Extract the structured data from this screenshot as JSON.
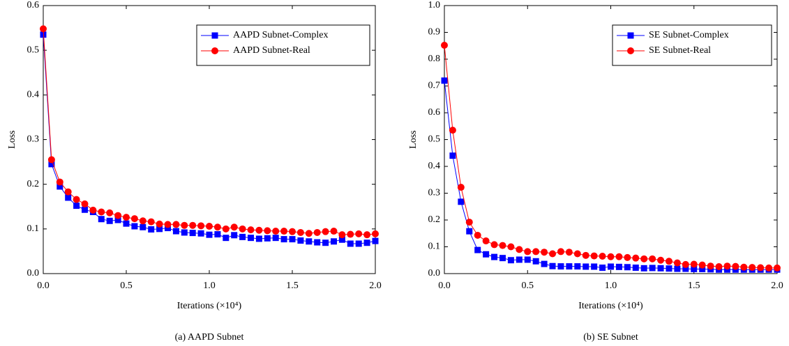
{
  "chart_data": [
    {
      "type": "line",
      "caption": "(a)  AAPD Subnet",
      "x_label": "Iterations (×10⁴)",
      "y_label": "Loss",
      "x": [
        0,
        0.05,
        0.1,
        0.15,
        0.2,
        0.25,
        0.3,
        0.35,
        0.4,
        0.45,
        0.5,
        0.55,
        0.6,
        0.65,
        0.7,
        0.75,
        0.8,
        0.85,
        0.9,
        0.95,
        1.0,
        1.05,
        1.1,
        1.15,
        1.2,
        1.25,
        1.3,
        1.35,
        1.4,
        1.45,
        1.5,
        1.55,
        1.6,
        1.65,
        1.7,
        1.75,
        1.8,
        1.85,
        1.9,
        1.95,
        2.0
      ],
      "xlim": [
        0,
        2.0
      ],
      "xticks": [
        {
          "value": 0,
          "label": "0.0"
        },
        0.5,
        {
          "value": 1,
          "label": "1.0"
        },
        1.5,
        {
          "value": 2,
          "label": "2.0"
        }
      ],
      "ylim": [
        0,
        0.6
      ],
      "yticks": [
        {
          "value": 0,
          "label": "0.0"
        },
        0.1,
        0.2,
        0.3,
        0.4,
        0.5,
        0.6
      ],
      "legend": "upper-right",
      "series": [
        {
          "name": "AAPD Subnet-Complex",
          "color": "#0000ff",
          "marker": "square",
          "values": [
            0.535,
            0.245,
            0.195,
            0.17,
            0.152,
            0.143,
            0.138,
            0.122,
            0.118,
            0.12,
            0.112,
            0.106,
            0.104,
            0.099,
            0.1,
            0.102,
            0.095,
            0.092,
            0.091,
            0.09,
            0.087,
            0.088,
            0.08,
            0.086,
            0.082,
            0.08,
            0.078,
            0.079,
            0.08,
            0.077,
            0.077,
            0.074,
            0.072,
            0.07,
            0.069,
            0.072,
            0.076,
            0.067,
            0.067,
            0.069,
            0.073
          ]
        },
        {
          "name": "AAPD Subnet-Real",
          "color": "#ff0000",
          "marker": "circle",
          "values": [
            0.548,
            0.255,
            0.205,
            0.183,
            0.166,
            0.156,
            0.142,
            0.138,
            0.136,
            0.13,
            0.126,
            0.123,
            0.118,
            0.116,
            0.111,
            0.11,
            0.11,
            0.108,
            0.108,
            0.107,
            0.106,
            0.104,
            0.1,
            0.104,
            0.1,
            0.098,
            0.097,
            0.096,
            0.095,
            0.095,
            0.094,
            0.092,
            0.09,
            0.092,
            0.094,
            0.095,
            0.087,
            0.088,
            0.089,
            0.087,
            0.089
          ]
        }
      ]
    },
    {
      "type": "line",
      "caption": "(b)  SE Subnet",
      "x_label": "Iterations (×10⁴)",
      "y_label": "Loss",
      "x": [
        0,
        0.05,
        0.1,
        0.15,
        0.2,
        0.25,
        0.3,
        0.35,
        0.4,
        0.45,
        0.5,
        0.55,
        0.6,
        0.65,
        0.7,
        0.75,
        0.8,
        0.85,
        0.9,
        0.95,
        1.0,
        1.05,
        1.1,
        1.15,
        1.2,
        1.25,
        1.3,
        1.35,
        1.4,
        1.45,
        1.5,
        1.55,
        1.6,
        1.65,
        1.7,
        1.75,
        1.8,
        1.85,
        1.9,
        1.95,
        2.0
      ],
      "xlim": [
        0,
        2.0
      ],
      "xticks": [
        {
          "value": 0,
          "label": "0.0"
        },
        0.5,
        {
          "value": 1,
          "label": "1.0"
        },
        1.5,
        {
          "value": 2,
          "label": "2.0"
        }
      ],
      "ylim": [
        0,
        1.0
      ],
      "yticks": [
        {
          "value": 0,
          "label": "0.0"
        },
        0.1,
        0.2,
        0.3,
        0.4,
        0.5,
        0.6,
        0.7,
        0.8,
        0.9,
        {
          "value": 1,
          "label": "1.0"
        }
      ],
      "legend": "upper-right",
      "series": [
        {
          "name": "SE Subnet-Complex",
          "color": "#0000ff",
          "marker": "square",
          "values": [
            0.72,
            0.44,
            0.268,
            0.158,
            0.088,
            0.072,
            0.062,
            0.058,
            0.05,
            0.052,
            0.052,
            0.046,
            0.036,
            0.028,
            0.027,
            0.027,
            0.027,
            0.026,
            0.026,
            0.022,
            0.026,
            0.025,
            0.024,
            0.022,
            0.02,
            0.021,
            0.02,
            0.019,
            0.018,
            0.018,
            0.017,
            0.017,
            0.016,
            0.015,
            0.015,
            0.015,
            0.015,
            0.015,
            0.015,
            0.015,
            0.015
          ]
        },
        {
          "name": "SE Subnet-Real",
          "color": "#ff0000",
          "marker": "circle",
          "values": [
            0.852,
            0.535,
            0.322,
            0.192,
            0.143,
            0.122,
            0.108,
            0.105,
            0.1,
            0.09,
            0.082,
            0.082,
            0.08,
            0.074,
            0.082,
            0.08,
            0.074,
            0.068,
            0.066,
            0.065,
            0.063,
            0.063,
            0.06,
            0.058,
            0.055,
            0.055,
            0.05,
            0.046,
            0.04,
            0.034,
            0.035,
            0.032,
            0.028,
            0.026,
            0.028,
            0.027,
            0.024,
            0.023,
            0.022,
            0.021,
            0.021
          ]
        }
      ]
    }
  ]
}
